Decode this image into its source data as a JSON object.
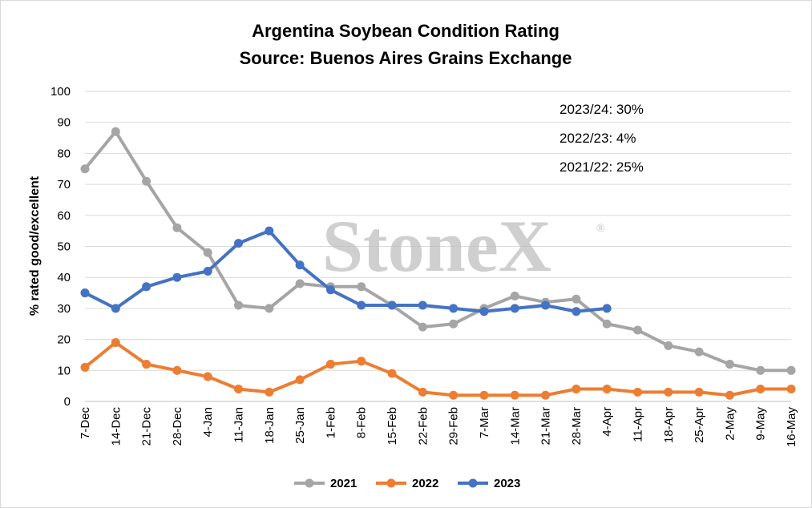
{
  "chart_data": {
    "type": "line",
    "title": "Argentina Soybean Condition Rating",
    "subtitle": "Source: Buenos Aires Grains Exchange",
    "ylabel": "% rated good/excellent",
    "xlabel": "",
    "ylim": [
      0,
      100
    ],
    "yticks": [
      0,
      10,
      20,
      30,
      40,
      50,
      60,
      70,
      80,
      90,
      100
    ],
    "grid": true,
    "legend_position": "bottom",
    "watermark": "StoneX",
    "watermark_mark": "®",
    "categories": [
      "7-Dec",
      "14-Dec",
      "21-Dec",
      "28-Dec",
      "4-Jan",
      "11-Jan",
      "18-Jan",
      "25-Jan",
      "1-Feb",
      "8-Feb",
      "15-Feb",
      "22-Feb",
      "29-Feb",
      "7-Mar",
      "14-Mar",
      "21-Mar",
      "28-Mar",
      "4-Apr",
      "11-Apr",
      "18-Apr",
      "25-Apr",
      "2-May",
      "9-May",
      "16-May"
    ],
    "series": [
      {
        "name": "2021",
        "color": "#a5a5a5",
        "values": [
          75,
          87,
          71,
          56,
          48,
          31,
          30,
          38,
          37,
          37,
          31,
          24,
          25,
          30,
          34,
          32,
          33,
          25,
          23,
          18,
          16,
          12,
          10,
          10
        ]
      },
      {
        "name": "2022",
        "color": "#ed7d31",
        "values": [
          11,
          19,
          12,
          10,
          8,
          4,
          3,
          7,
          12,
          13,
          9,
          3,
          2,
          2,
          2,
          2,
          4,
          4,
          3,
          3,
          3,
          2,
          4,
          4
        ]
      },
      {
        "name": "2023",
        "color": "#4472c4",
        "values": [
          35,
          30,
          37,
          40,
          42,
          51,
          55,
          44,
          36,
          31,
          31,
          31,
          30,
          29,
          30,
          31,
          29,
          30,
          null,
          null,
          null,
          null,
          null,
          null
        ]
      }
    ],
    "annotations": [
      "2023/24: 30%",
      "2022/23: 4%",
      "2021/22: 25%"
    ]
  }
}
